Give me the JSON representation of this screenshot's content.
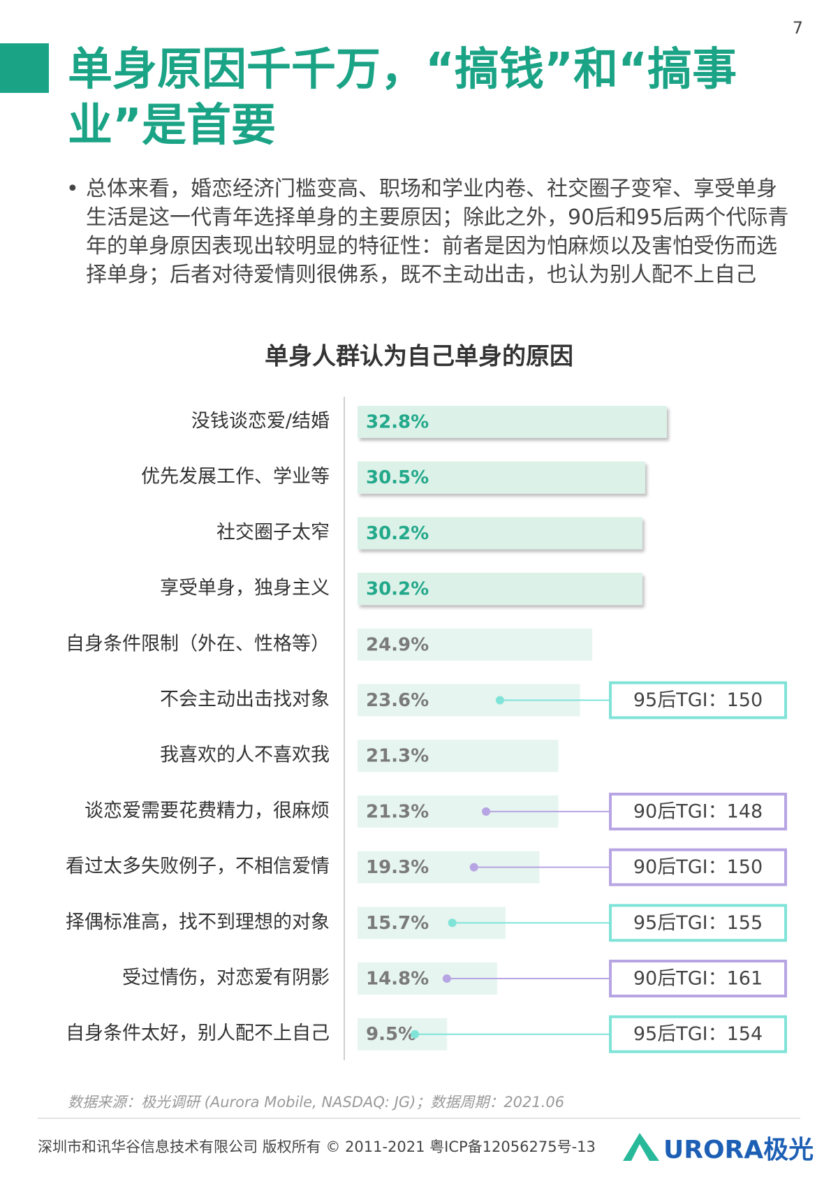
{
  "page_number": "7",
  "header": {
    "title": "单身原因千千万，“搞钱”和“搞事业”是首要"
  },
  "body": {
    "bullet": "总体来看，婚恋经济门槛变高、职场和学业内卷、社交圈子变窄、享受单身生活是这一代青年选择单身的主要原因；除此之外，90后和95后两个代际青年的单身原因表现出较明显的特征性：前者是因为怕麻烦以及害怕受伤而选择单身；后者对待爱情则很佛系，既不主动出击，也认为别人配不上自己"
  },
  "chart_data": {
    "type": "bar",
    "orientation": "horizontal",
    "title": "单身人群认为自己单身的原因",
    "categories": [
      "没钱谈恋爱/结婚",
      "优先发展工作、学业等",
      "社交圈子太窄",
      "享受单身，独身主义",
      "自身条件限制（外在、性格等）",
      "不会主动出击找对象",
      "我喜欢的人不喜欢我",
      "谈恋爱需要花费精力，很麻烦",
      "看过太多失败例子，不相信爱情",
      "择偶标准高，找不到理想的对象",
      "受过情伤，对恋爱有阴影",
      "自身条件太好，别人配不上自己"
    ],
    "values": [
      32.8,
      30.5,
      30.2,
      30.2,
      24.9,
      23.6,
      21.3,
      21.3,
      19.3,
      15.7,
      14.8,
      9.5
    ],
    "value_labels": [
      "32.8%",
      "30.5%",
      "30.2%",
      "30.2%",
      "24.9%",
      "23.6%",
      "21.3%",
      "21.3%",
      "19.3%",
      "15.7%",
      "14.8%",
      "9.5%"
    ],
    "colors": [
      "#dcf1e8",
      "#dcf1e8",
      "#dcf1e8",
      "#dcf1e8",
      "#e6f5ef",
      "#e6f5ef",
      "#e6f5ef",
      "#e6f5ef",
      "#e6f5ef",
      "#e6f5ef",
      "#e6f5ef",
      "#e6f5ef"
    ],
    "value_label_colors": [
      "#22a88a",
      "#22a88a",
      "#22a88a",
      "#22a88a",
      "#7a7a7a",
      "#7a7a7a",
      "#7a7a7a",
      "#7a7a7a",
      "#7a7a7a",
      "#7a7a7a",
      "#7a7a7a",
      "#7a7a7a"
    ],
    "annotations": [
      null,
      null,
      null,
      null,
      null,
      {
        "label": "95后TGI：150",
        "color": "#7fe3d8"
      },
      null,
      {
        "label": "90后TGI：148",
        "color": "#b7a4e3"
      },
      {
        "label": "90后TGI：150",
        "color": "#b7a4e3"
      },
      {
        "label": "95后TGI：155",
        "color": "#7fe3d8"
      },
      {
        "label": "90后TGI：161",
        "color": "#b7a4e3"
      },
      {
        "label": "95后TGI：154",
        "color": "#7fe3d8"
      }
    ]
  },
  "footer": {
    "source": "数据来源：极光调研 (Aurora Mobile, NASDAQ: JG)；数据周期：2021.06",
    "copyright": "深圳市和讯华谷信息技术有限公司 版权所有 © 2011-2021 粤ICP备12056275号-13",
    "logo": "URORA极光"
  }
}
